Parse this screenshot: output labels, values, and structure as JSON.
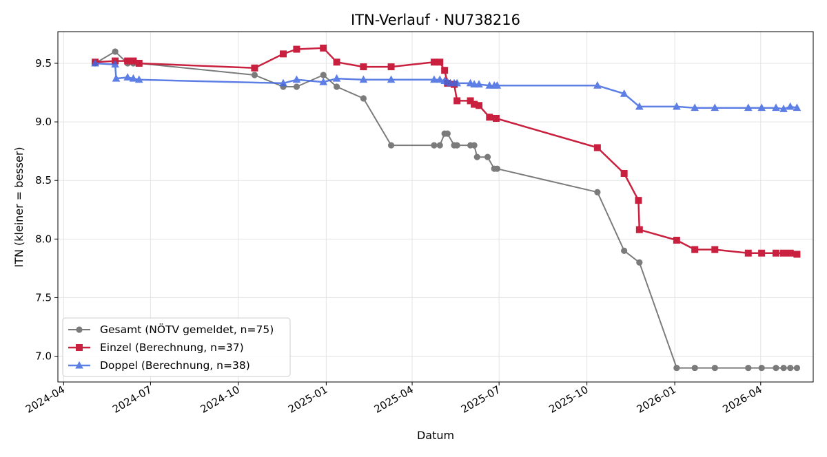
{
  "chart_data": {
    "type": "line",
    "title": "ITN-Verlauf · NU738216",
    "xlabel": "Datum",
    "ylabel": "ITN  (kleiner = besser)",
    "x_type": "date",
    "xlim": [
      "2024-03-26",
      "2026-05-26"
    ],
    "ylim": [
      6.78,
      9.77
    ],
    "x_ticks": [
      "2024-04-01",
      "2024-07-01",
      "2024-10-01",
      "2025-01-01",
      "2025-04-01",
      "2025-07-01",
      "2025-10-01",
      "2026-01-01",
      "2026-04-01"
    ],
    "x_tick_labels": [
      "2024-04",
      "2024-07",
      "2024-10",
      "2025-01",
      "2025-04",
      "2025-07",
      "2025-10",
      "2026-01",
      "2026-04"
    ],
    "y_ticks": [
      7.0,
      7.5,
      8.0,
      8.5,
      9.0,
      9.5
    ],
    "y_tick_labels": [
      "7.0",
      "7.5",
      "8.0",
      "8.5",
      "9.0",
      "9.5"
    ],
    "grid": true,
    "legend_position": "lower-left",
    "series": [
      {
        "name": "Gesamt (NÖTV gemeldet, n=75)",
        "color": "#444444",
        "marker": "circle",
        "points": [
          [
            "2024-05-04",
            9.5
          ],
          [
            "2024-05-25",
            9.6
          ],
          [
            "2024-06-07",
            9.5
          ],
          [
            "2024-06-13",
            9.5
          ],
          [
            "2024-06-19",
            9.5
          ],
          [
            "2024-10-18",
            9.4
          ],
          [
            "2024-11-17",
            9.3
          ],
          [
            "2024-12-01",
            9.3
          ],
          [
            "2024-12-29",
            9.4
          ],
          [
            "2025-01-12",
            9.3
          ],
          [
            "2025-02-09",
            9.2
          ],
          [
            "2025-03-10",
            8.8
          ],
          [
            "2025-04-24",
            8.8
          ],
          [
            "2025-04-30",
            8.8
          ],
          [
            "2025-05-05",
            8.9
          ],
          [
            "2025-05-08",
            8.9
          ],
          [
            "2025-05-15",
            8.8
          ],
          [
            "2025-05-18",
            8.8
          ],
          [
            "2025-06-01",
            8.8
          ],
          [
            "2025-06-05",
            8.8
          ],
          [
            "2025-06-08",
            8.7
          ],
          [
            "2025-06-19",
            8.7
          ],
          [
            "2025-06-26",
            8.6
          ],
          [
            "2025-06-29",
            8.6
          ],
          [
            "2025-10-12",
            8.4
          ],
          [
            "2025-11-09",
            7.9
          ],
          [
            "2025-11-25",
            7.8
          ],
          [
            "2026-01-03",
            6.9
          ],
          [
            "2026-01-22",
            6.9
          ],
          [
            "2026-02-12",
            6.9
          ],
          [
            "2026-03-19",
            6.9
          ],
          [
            "2026-04-02",
            6.9
          ],
          [
            "2026-04-17",
            6.9
          ],
          [
            "2026-04-25",
            6.9
          ],
          [
            "2026-05-02",
            6.9
          ],
          [
            "2026-05-09",
            6.9
          ]
        ]
      },
      {
        "name": "Einzel (Berechnung, n=37)",
        "color": "#c8203e",
        "marker": "square",
        "points": [
          [
            "2024-05-04",
            9.51
          ],
          [
            "2024-05-25",
            9.52
          ],
          [
            "2024-06-07",
            9.52
          ],
          [
            "2024-06-13",
            9.52
          ],
          [
            "2024-06-19",
            9.5
          ],
          [
            "2024-10-18",
            9.46
          ],
          [
            "2024-11-17",
            9.58
          ],
          [
            "2024-12-01",
            9.62
          ],
          [
            "2024-12-29",
            9.63
          ],
          [
            "2025-01-12",
            9.51
          ],
          [
            "2025-02-09",
            9.47
          ],
          [
            "2025-03-10",
            9.47
          ],
          [
            "2025-04-24",
            9.51
          ],
          [
            "2025-04-30",
            9.51
          ],
          [
            "2025-05-05",
            9.44
          ],
          [
            "2025-05-08",
            9.33
          ],
          [
            "2025-05-15",
            9.32
          ],
          [
            "2025-05-18",
            9.18
          ],
          [
            "2025-06-01",
            9.18
          ],
          [
            "2025-06-05",
            9.15
          ],
          [
            "2025-06-10",
            9.14
          ],
          [
            "2025-06-21",
            9.04
          ],
          [
            "2025-06-28",
            9.03
          ],
          [
            "2025-10-12",
            8.78
          ],
          [
            "2025-11-09",
            8.56
          ],
          [
            "2025-11-24",
            8.33
          ],
          [
            "2025-11-25",
            8.08
          ],
          [
            "2026-01-03",
            7.99
          ],
          [
            "2026-01-22",
            7.91
          ],
          [
            "2026-02-12",
            7.91
          ],
          [
            "2026-03-19",
            7.88
          ],
          [
            "2026-04-02",
            7.88
          ],
          [
            "2026-04-17",
            7.88
          ],
          [
            "2026-04-25",
            7.88
          ],
          [
            "2026-05-02",
            7.88
          ],
          [
            "2026-05-09",
            7.87
          ]
        ]
      },
      {
        "name": "Doppel (Berechnung, n=38)",
        "color": "#4169e1",
        "marker": "triangle",
        "points": [
          [
            "2024-05-04",
            9.5
          ],
          [
            "2024-05-25",
            9.49
          ],
          [
            "2024-05-26",
            9.37
          ],
          [
            "2024-06-07",
            9.38
          ],
          [
            "2024-06-13",
            9.37
          ],
          [
            "2024-06-19",
            9.36
          ],
          [
            "2024-11-17",
            9.33
          ],
          [
            "2024-12-01",
            9.36
          ],
          [
            "2024-12-29",
            9.34
          ],
          [
            "2025-01-12",
            9.37
          ],
          [
            "2025-02-09",
            9.36
          ],
          [
            "2025-03-10",
            9.36
          ],
          [
            "2025-04-24",
            9.36
          ],
          [
            "2025-04-30",
            9.36
          ],
          [
            "2025-05-05",
            9.35
          ],
          [
            "2025-05-08",
            9.34
          ],
          [
            "2025-05-11",
            9.33
          ],
          [
            "2025-05-15",
            9.33
          ],
          [
            "2025-05-18",
            9.33
          ],
          [
            "2025-06-01",
            9.33
          ],
          [
            "2025-06-05",
            9.32
          ],
          [
            "2025-06-10",
            9.32
          ],
          [
            "2025-06-21",
            9.31
          ],
          [
            "2025-06-26",
            9.31
          ],
          [
            "2025-06-29",
            9.31
          ],
          [
            "2025-10-12",
            9.31
          ],
          [
            "2025-11-09",
            9.24
          ],
          [
            "2025-11-25",
            9.13
          ],
          [
            "2026-01-03",
            9.13
          ],
          [
            "2026-01-22",
            9.12
          ],
          [
            "2026-02-12",
            9.12
          ],
          [
            "2026-03-19",
            9.12
          ],
          [
            "2026-04-02",
            9.12
          ],
          [
            "2026-04-17",
            9.12
          ],
          [
            "2026-04-25",
            9.11
          ],
          [
            "2026-05-02",
            9.13
          ],
          [
            "2026-05-09",
            9.12
          ]
        ]
      }
    ]
  }
}
